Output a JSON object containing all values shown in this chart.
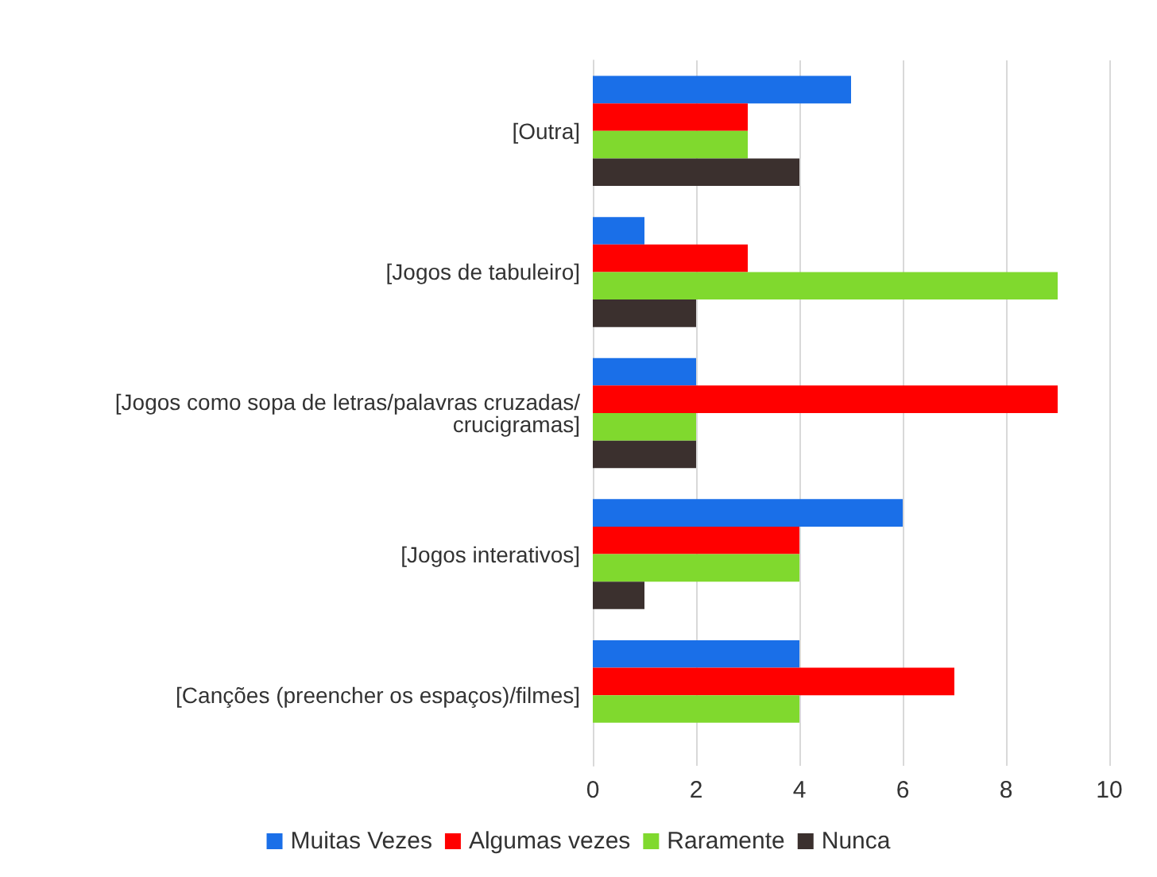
{
  "chart_data": {
    "type": "bar",
    "orientation": "horizontal",
    "categories": [
      "[Outra]",
      "[Jogos de tabuleiro]",
      "[Jogos como sopa de letras/palavras cruzadas/crucigramas]",
      "[Jogos interativos]",
      "[Canções (preencher os espaços)/filmes]"
    ],
    "series": [
      {
        "name": "Muitas Vezes",
        "color": "#1a6fe8",
        "values": [
          5,
          1,
          2,
          6,
          4
        ]
      },
      {
        "name": "Algumas vezes",
        "color": "#ff0000",
        "values": [
          3,
          3,
          9,
          4,
          7
        ]
      },
      {
        "name": "Raramente",
        "color": "#80d92e",
        "values": [
          3,
          9,
          2,
          4,
          4
        ]
      },
      {
        "name": "Nunca",
        "color": "#3b302e",
        "values": [
          4,
          2,
          2,
          1,
          0
        ]
      }
    ],
    "xlim": [
      0,
      10
    ],
    "xticks": [
      0,
      2,
      4,
      6,
      8,
      10
    ],
    "grid": "x",
    "legend": "bottom"
  }
}
